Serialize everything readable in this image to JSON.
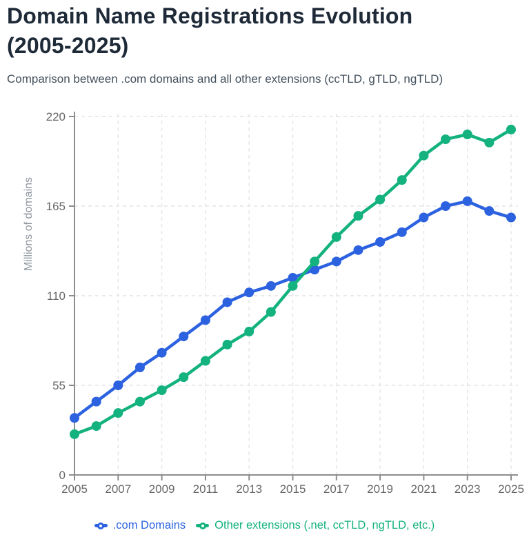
{
  "header": {
    "title_line1": "Domain Name Registrations Evolution",
    "title_line2": "(2005-2025)",
    "subtitle": "Comparison between .com domains and all other extensions (ccTLD, gTLD, ngTLD)"
  },
  "chart_data": {
    "type": "line",
    "title": "Domain Name Registrations Evolution (2005-2025)",
    "subtitle": "Comparison between .com domains and all other extensions (ccTLD, gTLD, ngTLD)",
    "x": [
      2005,
      2006,
      2007,
      2008,
      2009,
      2010,
      2011,
      2012,
      2013,
      2014,
      2015,
      2016,
      2017,
      2018,
      2019,
      2020,
      2021,
      2022,
      2023,
      2024,
      2025
    ],
    "series": [
      {
        "name": ".com Domains",
        "color": "#2c62e0",
        "values": [
          35,
          45,
          55,
          66,
          75,
          85,
          95,
          106,
          112,
          116,
          121,
          126,
          131,
          138,
          143,
          149,
          158,
          165,
          168,
          162,
          158
        ]
      },
      {
        "name": "Other extensions (.net, ccTLD, ngTLD, etc.)",
        "color": "#13b27e",
        "values": [
          25,
          30,
          38,
          45,
          52,
          60,
          70,
          80,
          88,
          100,
          116,
          131,
          146,
          159,
          169,
          181,
          196,
          206,
          209,
          204,
          212
        ]
      }
    ],
    "xlabel": "",
    "ylabel": "Millions of domains",
    "ylim": [
      0,
      220
    ],
    "yticks": [
      0,
      55,
      110,
      165,
      220
    ],
    "xticks": [
      2005,
      2007,
      2009,
      2011,
      2013,
      2015,
      2017,
      2019,
      2021,
      2023,
      2025
    ],
    "grid": "dashed",
    "legend_position": "bottom"
  }
}
